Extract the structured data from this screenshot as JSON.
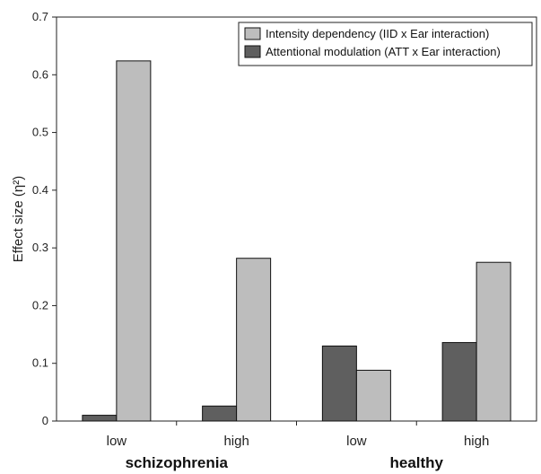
{
  "chart_data": {
    "type": "bar",
    "ylabel": "Effect size (η²)",
    "ylim": [
      0,
      0.7
    ],
    "yticks": [
      "0",
      "0.1",
      "0.2",
      "0.3",
      "0.4",
      "0.5",
      "0.6",
      "0.7"
    ],
    "categories": [
      "low",
      "high",
      "low",
      "high"
    ],
    "groups": [
      {
        "label": "schizophrenia",
        "categories": [
          0,
          1
        ]
      },
      {
        "label": "healthy",
        "categories": [
          2,
          3
        ]
      }
    ],
    "series": [
      {
        "name": "Attentional modulation (ATT x Ear interaction)",
        "color": "#5f5f5f",
        "values": [
          0.01,
          0.026,
          0.13,
          0.136
        ]
      },
      {
        "name": "Intensity dependency  (IID x Ear interaction)",
        "color": "#bdbdbd",
        "values": [
          0.624,
          0.282,
          0.088,
          0.275
        ]
      }
    ],
    "legend": {
      "position": "top-right",
      "order": [
        1,
        0
      ]
    },
    "grid": false
  }
}
